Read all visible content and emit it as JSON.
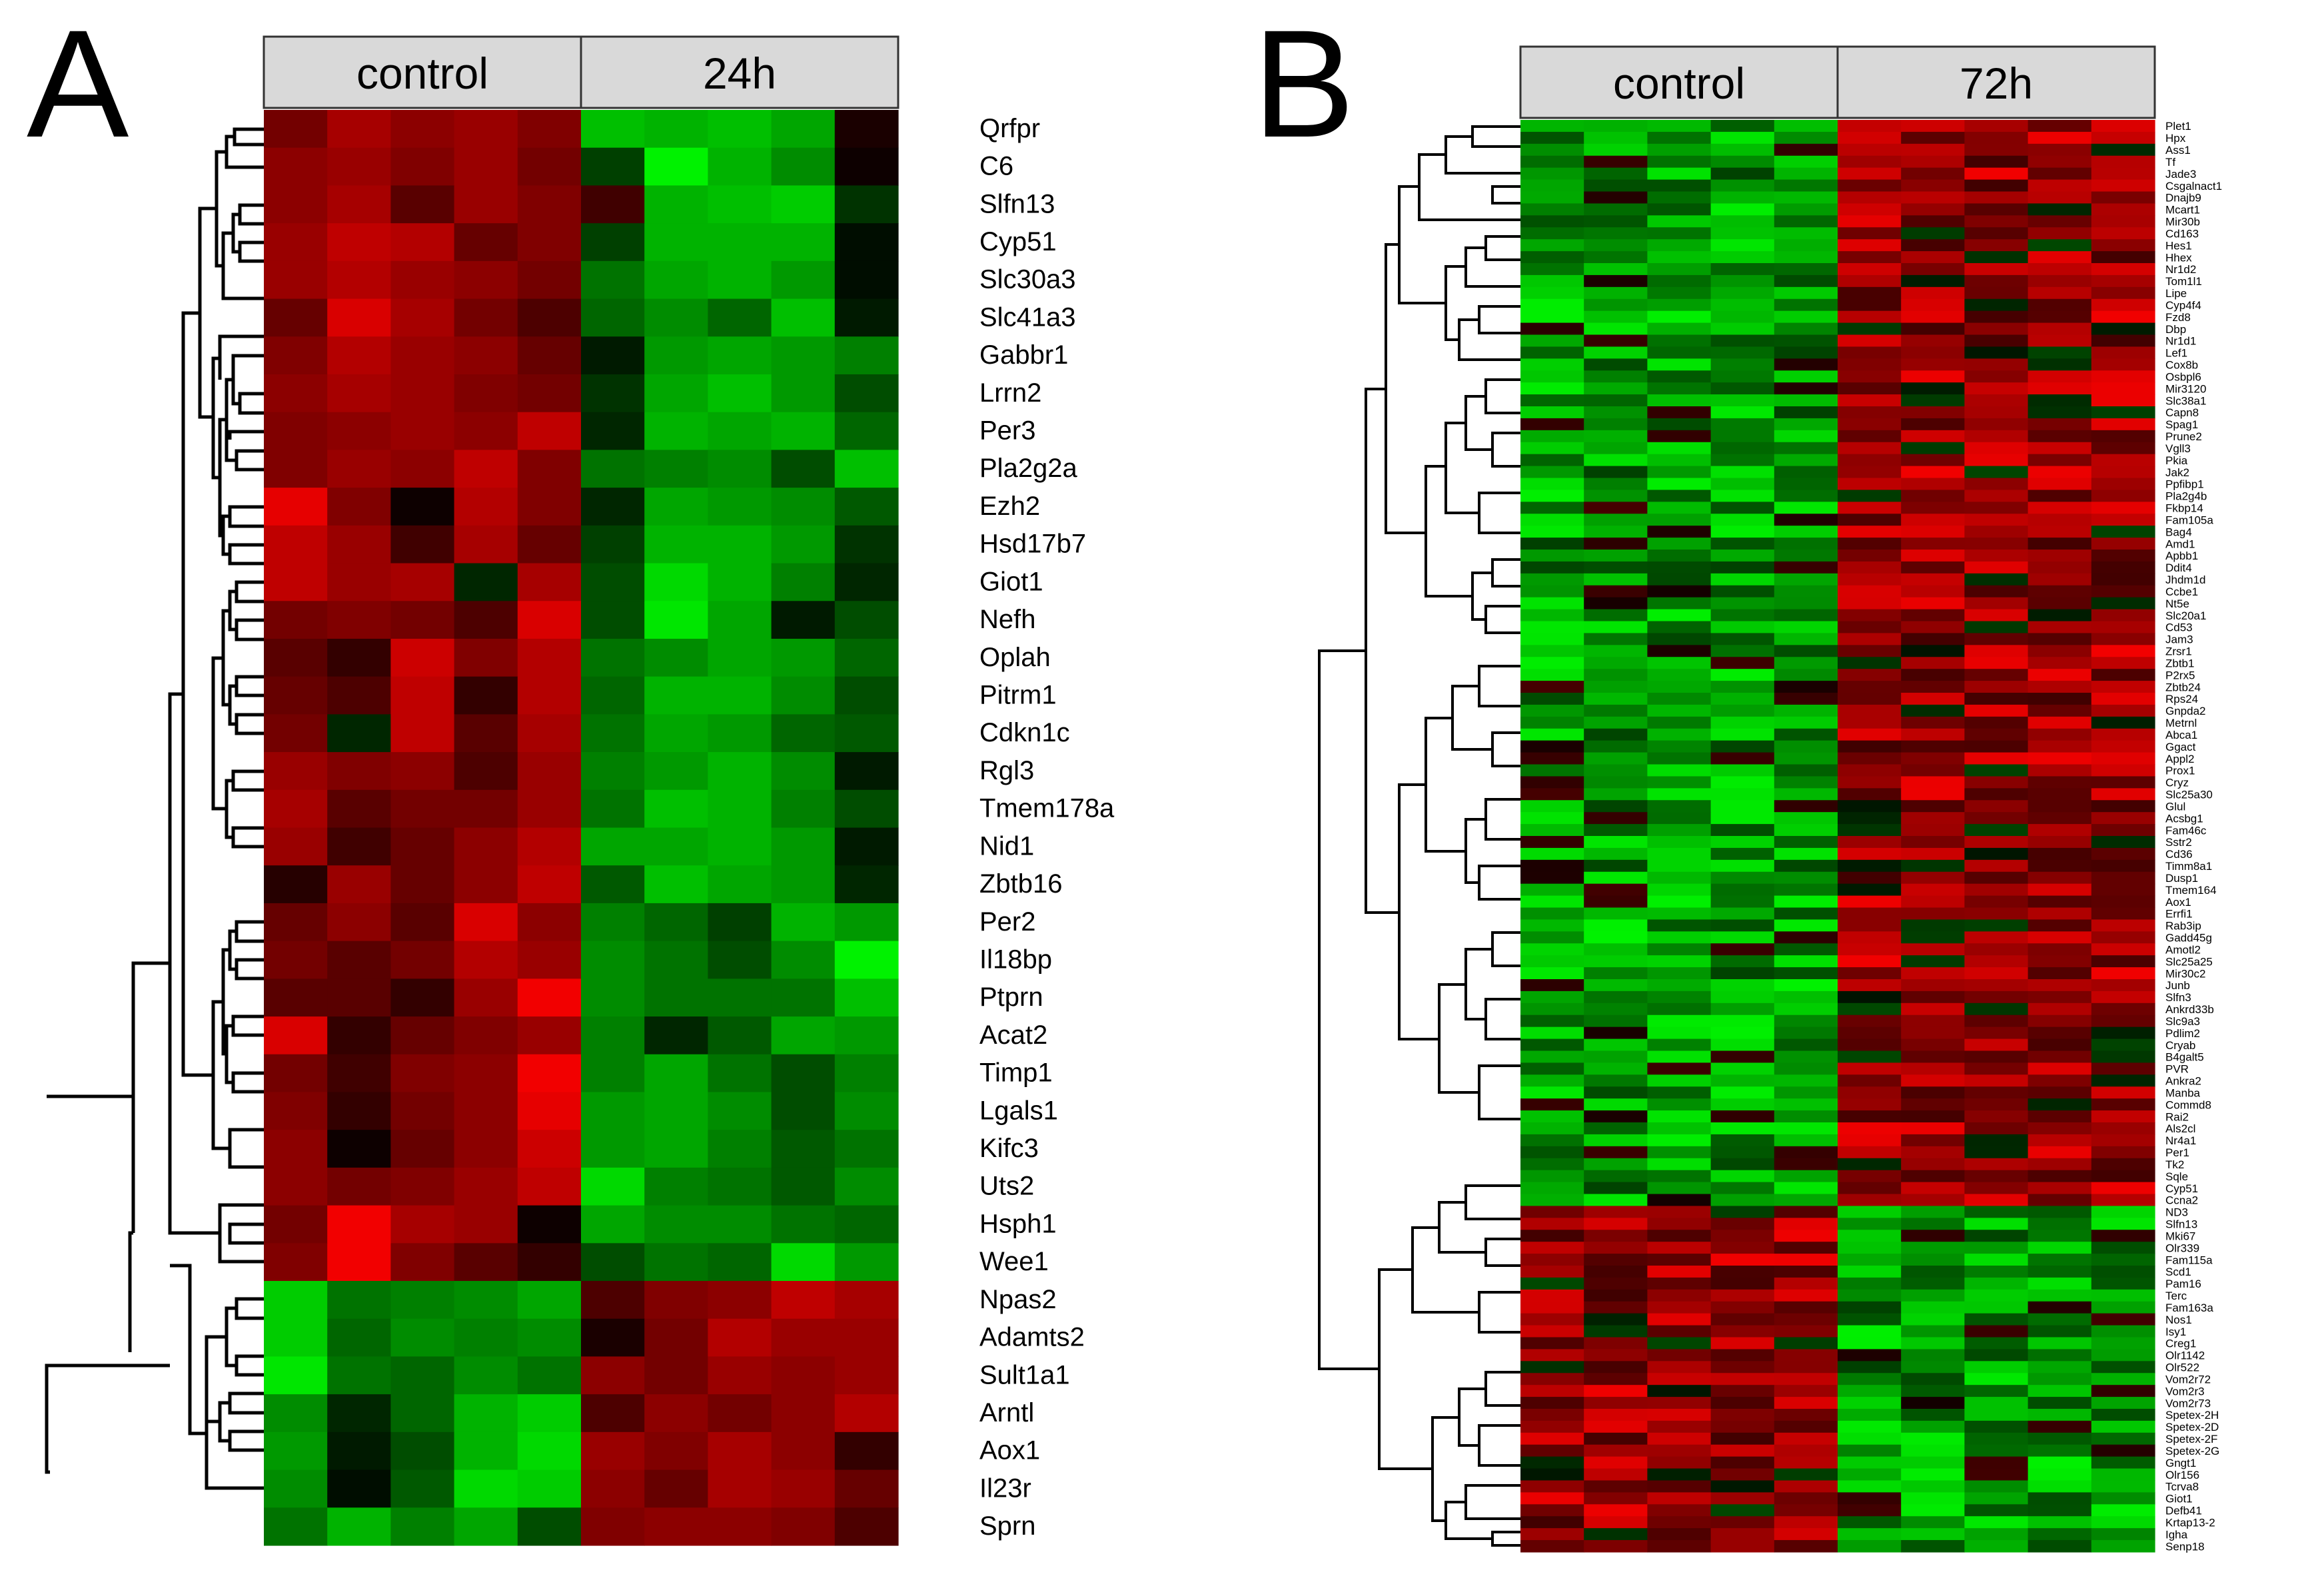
{
  "colors": {
    "up": "#ff0000",
    "down": "#00ff00",
    "zero": "#000000",
    "header_fill": "#d9d9d9"
  },
  "chart_data": [
    {
      "type": "heatmap",
      "panel_label": "A",
      "groups": [
        "control",
        "24h"
      ],
      "columns_per_group": 5,
      "dendrogram": "row",
      "color_scale": {
        "low": "green",
        "mid": "black",
        "high": "red",
        "range": [
          -1,
          1
        ]
      },
      "rows": [
        "Qrfpr",
        "C6",
        "Slfn13",
        "Cyp51",
        "Slc30a3",
        "Slc41a3",
        "Gabbr1",
        "Lrrn2",
        "Per3",
        "Pla2g2a",
        "Ezh2",
        "Hsd17b7",
        "Giot1",
        "Nefh",
        "Oplah",
        "Pitrm1",
        "Cdkn1c",
        "Rgl3",
        "Tmem178a",
        "Nid1",
        "Zbtb16",
        "Per2",
        "Il18bp",
        "Ptprn",
        "Acat2",
        "Timp1",
        "Lgals1",
        "Kifc3",
        "Uts2",
        "Hsph1",
        "Wee1",
        "Npas2",
        "Adamts2",
        "Sult1a1",
        "Arntl",
        "Aox1",
        "Il23r",
        "Sprn"
      ],
      "values": [
        [
          0.45,
          0.65,
          0.55,
          0.6,
          0.5,
          -0.75,
          -0.7,
          -0.75,
          -0.65,
          0.1
        ],
        [
          0.55,
          0.6,
          0.5,
          0.6,
          0.45,
          -0.25,
          -0.95,
          -0.7,
          -0.55,
          0.05
        ],
        [
          0.55,
          0.65,
          0.35,
          0.6,
          0.5,
          0.25,
          -0.7,
          -0.75,
          -0.8,
          -0.2
        ],
        [
          0.6,
          0.75,
          0.7,
          0.4,
          0.5,
          -0.25,
          -0.7,
          -0.7,
          -0.7,
          -0.05
        ],
        [
          0.6,
          0.7,
          0.6,
          0.55,
          0.45,
          -0.45,
          -0.65,
          -0.7,
          -0.6,
          -0.05
        ],
        [
          0.4,
          0.85,
          0.65,
          0.45,
          0.3,
          -0.4,
          -0.55,
          -0.4,
          -0.75,
          -0.1
        ],
        [
          0.5,
          0.7,
          0.6,
          0.55,
          0.4,
          -0.1,
          -0.6,
          -0.65,
          -0.6,
          -0.5
        ],
        [
          0.55,
          0.65,
          0.6,
          0.5,
          0.45,
          -0.2,
          -0.65,
          -0.75,
          -0.6,
          -0.3
        ],
        [
          0.5,
          0.55,
          0.6,
          0.55,
          0.75,
          -0.15,
          -0.7,
          -0.65,
          -0.7,
          -0.4
        ],
        [
          0.5,
          0.6,
          0.55,
          0.75,
          0.5,
          -0.45,
          -0.5,
          -0.55,
          -0.3,
          -0.75
        ],
        [
          0.9,
          0.5,
          0.05,
          0.7,
          0.5,
          -0.15,
          -0.65,
          -0.6,
          -0.55,
          -0.35
        ],
        [
          0.75,
          0.6,
          0.25,
          0.65,
          0.4,
          -0.25,
          -0.7,
          -0.7,
          -0.6,
          -0.2
        ],
        [
          0.75,
          0.6,
          0.65,
          -0.15,
          0.65,
          -0.3,
          -0.85,
          -0.7,
          -0.5,
          -0.15
        ],
        [
          0.45,
          0.5,
          0.45,
          0.3,
          0.85,
          -0.3,
          -0.9,
          -0.65,
          -0.1,
          -0.3
        ],
        [
          0.35,
          0.2,
          0.8,
          0.5,
          0.7,
          -0.45,
          -0.55,
          -0.65,
          -0.6,
          -0.4
        ],
        [
          0.4,
          0.3,
          0.75,
          0.2,
          0.7,
          -0.4,
          -0.7,
          -0.7,
          -0.55,
          -0.3
        ],
        [
          0.45,
          -0.15,
          0.75,
          0.35,
          0.65,
          -0.45,
          -0.65,
          -0.6,
          -0.4,
          -0.35
        ],
        [
          0.6,
          0.5,
          0.55,
          0.3,
          0.6,
          -0.5,
          -0.6,
          -0.7,
          -0.55,
          -0.1
        ],
        [
          0.65,
          0.35,
          0.45,
          0.45,
          0.6,
          -0.45,
          -0.75,
          -0.7,
          -0.5,
          -0.3
        ],
        [
          0.6,
          0.25,
          0.4,
          0.55,
          0.7,
          -0.65,
          -0.65,
          -0.7,
          -0.6,
          -0.1
        ],
        [
          0.15,
          0.6,
          0.4,
          0.55,
          0.75,
          -0.35,
          -0.75,
          -0.65,
          -0.6,
          -0.15
        ],
        [
          0.4,
          0.55,
          0.35,
          0.85,
          0.55,
          -0.5,
          -0.4,
          -0.25,
          -0.7,
          -0.6
        ],
        [
          0.45,
          0.35,
          0.45,
          0.7,
          0.6,
          -0.55,
          -0.45,
          -0.3,
          -0.55,
          -0.95
        ],
        [
          0.35,
          0.35,
          0.2,
          0.6,
          0.95,
          -0.55,
          -0.45,
          -0.45,
          -0.45,
          -0.75
        ],
        [
          0.85,
          0.2,
          0.4,
          0.5,
          0.6,
          -0.5,
          -0.15,
          -0.35,
          -0.65,
          -0.6
        ],
        [
          0.45,
          0.25,
          0.5,
          0.55,
          0.95,
          -0.5,
          -0.65,
          -0.45,
          -0.3,
          -0.5
        ],
        [
          0.5,
          0.2,
          0.45,
          0.55,
          0.9,
          -0.6,
          -0.65,
          -0.55,
          -0.3,
          -0.55
        ],
        [
          0.55,
          0.05,
          0.4,
          0.55,
          0.8,
          -0.6,
          -0.65,
          -0.5,
          -0.35,
          -0.45
        ],
        [
          0.55,
          0.45,
          0.5,
          0.6,
          0.75,
          -0.85,
          -0.5,
          -0.45,
          -0.35,
          -0.55
        ],
        [
          0.45,
          0.95,
          0.65,
          0.6,
          0.05,
          -0.65,
          -0.55,
          -0.55,
          -0.45,
          -0.4
        ],
        [
          0.5,
          0.95,
          0.5,
          0.35,
          0.2,
          -0.3,
          -0.45,
          -0.4,
          -0.85,
          -0.6
        ],
        [
          -0.8,
          -0.45,
          -0.5,
          -0.55,
          -0.65,
          0.3,
          0.5,
          0.55,
          0.75,
          0.65
        ],
        [
          -0.8,
          -0.4,
          -0.55,
          -0.5,
          -0.55,
          0.1,
          0.45,
          0.7,
          0.6,
          0.6
        ],
        [
          -0.9,
          -0.45,
          -0.4,
          -0.55,
          -0.45,
          0.55,
          0.45,
          0.6,
          0.55,
          0.6
        ],
        [
          -0.55,
          -0.15,
          -0.4,
          -0.7,
          -0.8,
          0.3,
          0.55,
          0.45,
          0.55,
          0.7
        ],
        [
          -0.6,
          -0.1,
          -0.3,
          -0.7,
          -0.85,
          0.6,
          0.5,
          0.65,
          0.55,
          0.2
        ],
        [
          -0.55,
          -0.05,
          -0.35,
          -0.85,
          -0.8,
          0.55,
          0.4,
          0.65,
          0.6,
          0.4
        ],
        [
          -0.45,
          -0.7,
          -0.5,
          -0.65,
          -0.3,
          0.5,
          0.55,
          0.55,
          0.5,
          0.3
        ]
      ]
    },
    {
      "type": "heatmap",
      "panel_label": "B",
      "groups": [
        "control",
        "72h"
      ],
      "columns_per_group": 5,
      "dendrogram": "row",
      "color_scale": {
        "low": "green",
        "mid": "black",
        "high": "red",
        "range": [
          -1,
          1
        ]
      },
      "upregulated_row_count": 91,
      "rows": [
        "Plet1",
        "Hpx",
        "Ass1",
        "Tf",
        "Jade3",
        "Csgalnact1",
        "Dnajb9",
        "Mcart1",
        "Mir30b",
        "Cd163",
        "Hes1",
        "Hhex",
        "Nr1d2",
        "Tom1l1",
        "Lipe",
        "Cyp4f4",
        "Fzd8",
        "Dbp",
        "Nr1d1",
        "Lef1",
        "Cox8b",
        "Osbpl6",
        "Mir3120",
        "Slc38a1",
        "Capn8",
        "Spag1",
        "Prune2",
        "Vgll3",
        "Pkia",
        "Jak2",
        "Ppfibp1",
        "Pla2g4b",
        "Fkbp14",
        "Fam105a",
        "Bag4",
        "Amd1",
        "Apbb1",
        "Ddit4",
        "Jhdm1d",
        "Ccbe1",
        "Nt5e",
        "Slc20a1",
        "Cd53",
        "Jam3",
        "Zrsr1",
        "Zbtb1",
        "P2rx5",
        "Zbtb24",
        "Rps24",
        "Gnpda2",
        "Metrnl",
        "Abca1",
        "Ggact",
        "Appl2",
        "Prox1",
        "Cryz",
        "Slc25a30",
        "Glul",
        "Acsbg1",
        "Fam46c",
        "Sstr2",
        "Cd36",
        "Timm8a1",
        "Dusp1",
        "Tmem164",
        "Aox1",
        "Errfi1",
        "Rab3ip",
        "Gadd45g",
        "Amotl2",
        "Slc25a25",
        "Mir30c2",
        "Junb",
        "Slfn3",
        "Ankrd33b",
        "Slc9a3",
        "Pdlim2",
        "Cryab",
        "B4galt5",
        "PVR",
        "Ankra2",
        "Manba",
        "Commd8",
        "Rai2",
        "Als2cl",
        "Nr4a1",
        "Per1",
        "Tk2",
        "Sqle",
        "Cyp51",
        "Ccna2",
        "ND3",
        "Slfn13",
        "Mki67",
        "Olr339",
        "Fam115a",
        "Scd1",
        "Pam16",
        "Terc",
        "Fam163a",
        "Nos1",
        "Isy1",
        "Creg1",
        "Olr1142",
        "Olr522",
        "Vom2r72",
        "Vom2r3",
        "Vom2r73",
        "Spetex-2H",
        "Spetex-2D",
        "Spetex-2F",
        "Spetex-2G",
        "Gngt1",
        "Olr156",
        "Tcrva8",
        "Giot1",
        "Defb41",
        "Krtap13-2",
        "Igha",
        "Senp18"
      ]
    }
  ]
}
